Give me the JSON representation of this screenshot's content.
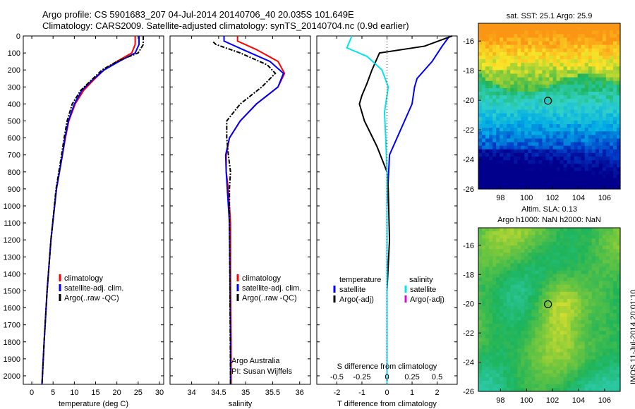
{
  "header": {
    "line1": "Argo profile: CS 5901683_207 04-Jul-2014 20140706_40 20.035S 101.649E",
    "line2": "Climatology: CARS2009. Satellite-adjusted climatology: synTS_20140704.nc (0.9d earlier)"
  },
  "side_stamp": "IMOS 11-Jul-2014 20:01:10",
  "credit": {
    "line1": "Argo Australia",
    "line2": "PI: Susan Wijffels"
  },
  "colors": {
    "climatology": "#ff0000",
    "satellite": "#0000ff",
    "argo": "#000000",
    "sal_sat": "#00e5ee",
    "sal_argo": "#e000e0"
  },
  "chart_data": [
    {
      "type": "line",
      "name": "temperature",
      "xlabel": "temperature (deg C)",
      "ylabel": "",
      "xlim": [
        -2,
        31
      ],
      "ylim": [
        2050,
        0
      ],
      "xticks": [
        0,
        5,
        10,
        15,
        20,
        25,
        30
      ],
      "yticks": [
        0,
        100,
        200,
        300,
        400,
        500,
        600,
        700,
        800,
        900,
        1000,
        1100,
        1200,
        1300,
        1400,
        1500,
        1600,
        1700,
        1800,
        1900,
        2000
      ],
      "legend": [
        "climatology",
        "satellite-adj. clim.",
        "Argo(..raw -QC)"
      ],
      "series": [
        {
          "name": "climatology",
          "color": "#ff0000",
          "x": [
            24.3,
            24.3,
            23.5,
            20,
            17,
            14.5,
            12.2,
            10.2,
            8.7,
            7.9,
            7.2,
            5.8,
            4.5,
            3.6,
            2.9,
            2.4
          ],
          "y": [
            0,
            50,
            100,
            150,
            200,
            260,
            320,
            400,
            500,
            600,
            700,
            900,
            1200,
            1500,
            1800,
            2050
          ]
        },
        {
          "name": "satellite-adj. clim.",
          "color": "#0000ff",
          "x": [
            25.2,
            25.2,
            24.3,
            20.5,
            17,
            14.2,
            11.8,
            10,
            8.6,
            7.8,
            7.2,
            5.8,
            4.5,
            3.6,
            2.9,
            2.4
          ],
          "y": [
            0,
            50,
            100,
            150,
            200,
            260,
            320,
            400,
            500,
            600,
            700,
            900,
            1200,
            1500,
            1800,
            2050
          ]
        },
        {
          "name": "Argo(..raw -QC)",
          "color": "#000000",
          "x": [
            26.2,
            26.2,
            25,
            20,
            16.5,
            14,
            11.5,
            9.5,
            8.3,
            7.6,
            7,
            5.7,
            4.5,
            3.6,
            2.9,
            2.4
          ],
          "y": [
            0,
            50,
            100,
            150,
            200,
            260,
            320,
            400,
            500,
            600,
            700,
            900,
            1200,
            1500,
            1800,
            2050
          ]
        }
      ]
    },
    {
      "type": "line",
      "name": "salinity",
      "xlabel": "salinity",
      "xlim": [
        33.6,
        36.2
      ],
      "ylim": [
        2050,
        0
      ],
      "xticks": [
        34,
        34.5,
        35,
        35.5,
        36
      ],
      "legend": [
        "climatology",
        "satellite-adj. clim.",
        "Argo(..raw -QC)"
      ],
      "series": [
        {
          "name": "climatology",
          "color": "#ff0000",
          "x": [
            34.85,
            34.85,
            35.2,
            35.6,
            35.72,
            35.6,
            35.2,
            34.9,
            34.7,
            34.64,
            34.64,
            34.68,
            34.72,
            34.72,
            34.73,
            34.73
          ],
          "y": [
            0,
            30,
            80,
            150,
            220,
            300,
            400,
            500,
            600,
            700,
            800,
            900,
            1100,
            1400,
            1800,
            2050
          ]
        },
        {
          "name": "satellite-adj. clim.",
          "color": "#0000ff",
          "x": [
            34.6,
            34.6,
            34.95,
            35.45,
            35.7,
            35.6,
            35.2,
            34.9,
            34.7,
            34.63,
            34.64,
            34.66,
            34.7,
            34.71,
            34.72,
            34.72
          ],
          "y": [
            0,
            30,
            80,
            150,
            220,
            300,
            400,
            500,
            600,
            700,
            800,
            900,
            1100,
            1400,
            1800,
            2050
          ]
        },
        {
          "name": "Argo(..raw -QC)",
          "color": "#000000",
          "x": [
            34.4,
            34.45,
            34.9,
            35.4,
            35.55,
            35.3,
            34.9,
            34.65,
            34.65,
            34.68,
            34.72,
            34.7,
            34.7,
            34.71,
            34.72
          ],
          "y": [
            35,
            50,
            100,
            170,
            220,
            300,
            400,
            500,
            600,
            700,
            800,
            900,
            1100,
            1500,
            2050
          ]
        }
      ]
    },
    {
      "type": "line",
      "name": "difference from climatology",
      "xlabel": "T difference from climatology",
      "xlabel_top": "S difference from climatology",
      "xlim": [
        -2.8,
        2.8
      ],
      "ylim": [
        2050,
        0
      ],
      "xticks": [
        -2,
        -1,
        0,
        1,
        2
      ],
      "xticks_s": [
        "-0.5",
        "-0.25",
        "0",
        "0.25",
        "0.5"
      ],
      "legend_temperature": {
        "title": "temperature",
        "items": [
          "satellite",
          "Argo(-adj)"
        ]
      },
      "legend_salinity": {
        "title": "salinity",
        "items": [
          "satellite",
          "Argo(-adj)"
        ]
      },
      "series": [
        {
          "name": "temperature satellite",
          "color": "#0000ff",
          "x": [
            2.5,
            2.2,
            1.8,
            1.2,
            1.1,
            1.0,
            0.7,
            0.4,
            0.1,
            0.0,
            0.0,
            0.0
          ],
          "y": [
            0,
            60,
            150,
            250,
            300,
            400,
            500,
            600,
            700,
            1000,
            1500,
            2050
          ]
        },
        {
          "name": "temperature Argo(-adj)",
          "color": "#000000",
          "x": [
            2.6,
            1.5,
            -0.3,
            -0.6,
            -0.8,
            -1.0,
            -1.1,
            -0.9,
            -0.4,
            0.0,
            0.05,
            0.1,
            0.0,
            0.0
          ],
          "y": [
            0,
            60,
            100,
            200,
            280,
            350,
            400,
            500,
            650,
            800,
            900,
            1200,
            1500,
            2050
          ]
        },
        {
          "name": "salinity satellite",
          "color": "#00e5ee",
          "x": [
            -1.4,
            -1.6,
            -0.8,
            -0.2,
            0.05,
            -0.1,
            -0.05,
            0.0,
            0.0,
            0.0
          ],
          "y": [
            0,
            70,
            120,
            200,
            300,
            450,
            600,
            800,
            1200,
            2050
          ]
        }
      ]
    },
    {
      "type": "heatmap",
      "title": "sat. SST: 25.1  Argo: 25.9",
      "xlim": [
        96.3,
        107.2
      ],
      "ylim": [
        -26,
        -14.8
      ],
      "xticks": [
        98,
        100,
        102,
        104,
        106
      ],
      "yticks": [
        -16,
        -18,
        -20,
        -22,
        -24,
        -26
      ],
      "marker": {
        "x": 101.649,
        "y": -20.035
      }
    },
    {
      "type": "heatmap",
      "title": "Altim. SLA: 0.13",
      "subtitle": "Argo h1000: NaN h2000: NaN",
      "xlim": [
        96.3,
        107.2
      ],
      "ylim": [
        -26,
        -14.8
      ],
      "xticks": [
        98,
        100,
        102,
        104,
        106
      ],
      "yticks": [
        -16,
        -18,
        -20,
        -22,
        -24,
        -26
      ],
      "marker": {
        "x": 101.649,
        "y": -20.035
      }
    }
  ]
}
